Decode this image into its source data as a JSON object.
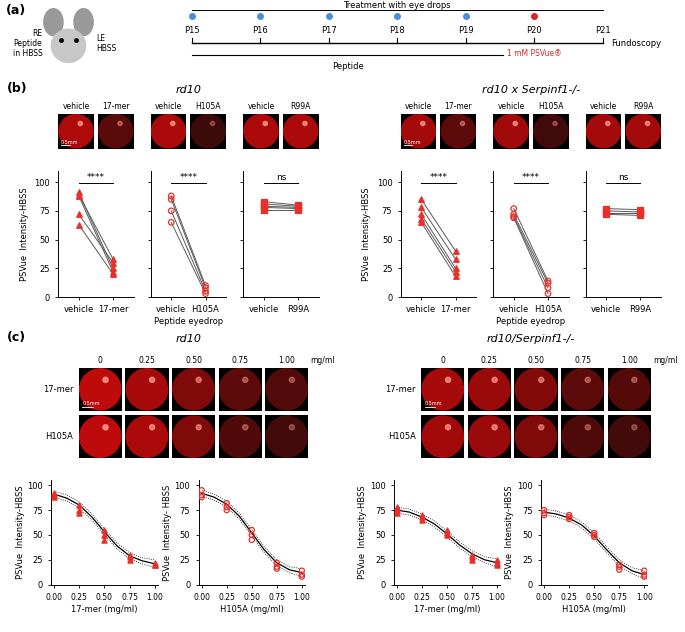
{
  "panel_a": {
    "label": "(a)",
    "right_eye": [
      "RE",
      "Peptide",
      "in HBSS"
    ],
    "left_eye": [
      "LE",
      "HBSS"
    ],
    "header": "Treatment with eye drops",
    "days": [
      "P15",
      "P16",
      "P17",
      "P18",
      "P19",
      "P20",
      "P21"
    ],
    "drop_days": [
      "P15",
      "P16",
      "P17",
      "P18",
      "P19"
    ],
    "psvue_day": "P20",
    "psvue_label": "1 mM PSVue®",
    "fundoscopy_day": "P21",
    "fundoscopy_label": "Fundoscopy",
    "peptide_label": "Peptide"
  },
  "panel_b": {
    "label": "(b)",
    "titles": [
      "rd10",
      "rd10 x Serpinf1-/-"
    ],
    "scale_bar": "0.5mm"
  },
  "panel_c": {
    "label": "(c)",
    "titles": [
      "rd10",
      "rd10/Serpinf1-/-"
    ],
    "doses": [
      "0",
      "0.25",
      "0.50",
      "0.75",
      "1.00"
    ],
    "dose_unit": "mg/ml",
    "rows": [
      "17-mer",
      "H105A"
    ],
    "scale_bar": "0.5mm"
  },
  "chart_data": [
    {
      "type": "line",
      "panel": "b",
      "group": 0,
      "categories": [
        "vehicle",
        "17-mer"
      ],
      "color": "#e8302a",
      "marker": "triangle",
      "series": [
        {
          "values": [
            91,
            25
          ]
        },
        {
          "values": [
            89,
            33
          ]
        },
        {
          "values": [
            88,
            22
          ]
        },
        {
          "values": [
            72,
            30
          ]
        },
        {
          "values": [
            63,
            20
          ]
        }
      ],
      "ylim": [
        0,
        110
      ],
      "yticks": [
        0,
        25,
        50,
        75,
        100
      ],
      "annotation": "****",
      "y_label": "PSVue  Intensity-HBSS"
    },
    {
      "type": "line",
      "panel": "b",
      "group": 0,
      "categories": [
        "vehicle",
        "H105A"
      ],
      "color": "#e8302a",
      "marker": "circle_open",
      "series": [
        {
          "values": [
            88,
            10
          ]
        },
        {
          "values": [
            85,
            8
          ]
        },
        {
          "values": [
            75,
            5
          ]
        },
        {
          "values": [
            65,
            3
          ]
        }
      ],
      "ylim": [
        0,
        110
      ],
      "yticks": [
        0,
        25,
        50,
        75,
        100
      ],
      "annotation": "****",
      "tick_labels": "x",
      "x_label": "Peptide eyedrop"
    },
    {
      "type": "line",
      "panel": "b",
      "group": 0,
      "categories": [
        "vehicle",
        "R99A"
      ],
      "color": "#e8302a",
      "marker": "square",
      "series": [
        {
          "values": [
            83,
            80
          ]
        },
        {
          "values": [
            81,
            79
          ]
        },
        {
          "values": [
            79,
            78
          ]
        },
        {
          "values": [
            78,
            77
          ]
        },
        {
          "values": [
            76,
            76
          ]
        }
      ],
      "ylim": [
        0,
        110
      ],
      "yticks": [
        0,
        25,
        50,
        75,
        100
      ],
      "annotation": "ns",
      "tick_labels": "x"
    },
    {
      "type": "line",
      "panel": "b",
      "group": 1,
      "categories": [
        "vehicle",
        "17-mer"
      ],
      "color": "#e8302a",
      "marker": "triangle",
      "series": [
        {
          "values": [
            85,
            40
          ]
        },
        {
          "values": [
            78,
            33
          ]
        },
        {
          "values": [
            72,
            25
          ]
        },
        {
          "values": [
            68,
            22
          ]
        },
        {
          "values": [
            65,
            18
          ]
        }
      ],
      "ylim": [
        0,
        110
      ],
      "yticks": [
        0,
        25,
        50,
        75,
        100
      ],
      "annotation": "****",
      "y_label": "PSVue  Intensity-HBSS"
    },
    {
      "type": "line",
      "panel": "b",
      "group": 1,
      "categories": [
        "vehicle",
        "H105A"
      ],
      "color": "#e8302a",
      "marker": "circle_open",
      "series": [
        {
          "values": [
            77,
            14
          ]
        },
        {
          "values": [
            72,
            12
          ]
        },
        {
          "values": [
            70,
            8
          ]
        },
        {
          "values": [
            69,
            3
          ]
        }
      ],
      "ylim": [
        0,
        110
      ],
      "yticks": [
        0,
        25,
        50,
        75,
        100
      ],
      "annotation": "****",
      "tick_labels": "x",
      "x_label": "Peptide eyedrop"
    },
    {
      "type": "line",
      "panel": "b",
      "group": 1,
      "categories": [
        "vehicle",
        "R99A"
      ],
      "color": "#e8302a",
      "marker": "square",
      "series": [
        {
          "values": [
            77,
            76
          ]
        },
        {
          "values": [
            75,
            74
          ]
        },
        {
          "values": [
            73,
            73
          ]
        },
        {
          "values": [
            72,
            71
          ]
        }
      ],
      "ylim": [
        0,
        110
      ],
      "yticks": [
        0,
        25,
        50,
        75,
        100
      ],
      "annotation": "ns",
      "tick_labels": "x"
    },
    {
      "type": "scatter",
      "panel": "c",
      "group": 0,
      "color": "#e8302a",
      "marker": "triangle",
      "x": [
        0,
        0,
        0,
        0.25,
        0.25,
        0.25,
        0.5,
        0.5,
        0.5,
        0.75,
        0.75,
        0.75,
        1,
        1,
        1
      ],
      "values": [
        92,
        90,
        88,
        80,
        75,
        72,
        55,
        50,
        45,
        30,
        28,
        25,
        22,
        20,
        20
      ],
      "fit": {
        "x": [
          0,
          0.125,
          0.25,
          0.375,
          0.5,
          0.625,
          0.75,
          0.875,
          1
        ],
        "values": [
          91,
          87,
          80,
          68,
          53,
          39,
          29,
          24,
          21
        ],
        "lower": [
          88,
          84,
          77,
          65,
          50,
          36,
          26,
          21,
          17
        ],
        "upper": [
          94,
          90,
          83,
          71,
          56,
          42,
          32,
          27,
          25
        ]
      },
      "xlim": [
        -0.03,
        1.03
      ],
      "xticks": [
        {
          "value": 0,
          "label": "0.00"
        },
        {
          "value": 0.25,
          "label": "0.25"
        },
        {
          "value": 0.5,
          "label": "0.50"
        },
        {
          "value": 0.75,
          "label": "0.75"
        },
        {
          "value": 1,
          "label": "1.00"
        }
      ],
      "ylim": [
        0,
        105
      ],
      "yticks": [
        0,
        25,
        50,
        75,
        100
      ],
      "x_label": "17-mer (mg/ml)",
      "y_label": "PSVue  Intensity-HBSS"
    },
    {
      "type": "scatter",
      "panel": "c",
      "group": 0,
      "color": "#e8302a",
      "marker": "circle_open",
      "x": [
        0,
        0,
        0,
        0.25,
        0.25,
        0.25,
        0.5,
        0.5,
        0.5,
        0.75,
        0.75,
        0.75,
        1,
        1,
        1
      ],
      "values": [
        95,
        90,
        88,
        82,
        78,
        75,
        55,
        50,
        45,
        22,
        18,
        16,
        14,
        10,
        8
      ],
      "fit": {
        "x": [
          0,
          0.125,
          0.25,
          0.375,
          0.5,
          0.625,
          0.75,
          0.875,
          1
        ],
        "values": [
          92,
          88,
          81,
          69,
          52,
          35,
          22,
          15,
          12
        ],
        "lower": [
          89,
          85,
          78,
          66,
          49,
          32,
          19,
          12,
          8
        ],
        "upper": [
          95,
          91,
          84,
          72,
          55,
          38,
          25,
          18,
          16
        ]
      },
      "xlim": [
        -0.03,
        1.03
      ],
      "xticks": [
        {
          "value": 0,
          "label": "0.00"
        },
        {
          "value": 0.25,
          "label": "0.25"
        },
        {
          "value": 0.5,
          "label": "0.50"
        },
        {
          "value": 0.75,
          "label": "0.75"
        },
        {
          "value": 1,
          "label": "1.00"
        }
      ],
      "ylim": [
        0,
        105
      ],
      "yticks": [
        0,
        25,
        50,
        75,
        100
      ],
      "x_label": "H105A (mg/ml)",
      "y_label": "PSVue  Intensity- HBSS"
    },
    {
      "type": "scatter",
      "panel": "c",
      "group": 1,
      "color": "#e8302a",
      "marker": "triangle",
      "x": [
        0,
        0,
        0,
        0.25,
        0.25,
        0.25,
        0.5,
        0.5,
        0.5,
        0.75,
        0.75,
        0.75,
        1,
        1,
        1
      ],
      "values": [
        78,
        75,
        72,
        70,
        68,
        65,
        55,
        52,
        50,
        30,
        28,
        25,
        25,
        22,
        20
      ],
      "fit": {
        "x": [
          0,
          0.125,
          0.25,
          0.375,
          0.5,
          0.625,
          0.75,
          0.875,
          1
        ],
        "values": [
          75,
          73,
          68,
          61,
          51,
          40,
          31,
          25,
          22
        ],
        "lower": [
          72,
          70,
          65,
          58,
          48,
          37,
          28,
          22,
          18
        ],
        "upper": [
          78,
          76,
          71,
          64,
          54,
          43,
          34,
          28,
          26
        ]
      },
      "xlim": [
        -0.03,
        1.03
      ],
      "xticks": [
        {
          "value": 0,
          "label": "0.00"
        },
        {
          "value": 0.25,
          "label": "0.25"
        },
        {
          "value": 0.5,
          "label": "0.50"
        },
        {
          "value": 0.75,
          "label": "0.75"
        },
        {
          "value": 1,
          "label": "1.00"
        }
      ],
      "ylim": [
        0,
        105
      ],
      "yticks": [
        0,
        25,
        50,
        75,
        100
      ],
      "x_label": "17-mer (mg/ml)",
      "y_label": "PSVue  Intensity-HBSS"
    },
    {
      "type": "scatter",
      "panel": "c",
      "group": 1,
      "color": "#e8302a",
      "marker": "circle_open",
      "x": [
        0,
        0,
        0,
        0.25,
        0.25,
        0.25,
        0.5,
        0.5,
        0.5,
        0.75,
        0.75,
        0.75,
        1,
        1,
        1
      ],
      "values": [
        75,
        72,
        70,
        70,
        68,
        66,
        52,
        50,
        48,
        20,
        18,
        15,
        14,
        10,
        8
      ],
      "fit": {
        "x": [
          0,
          0.125,
          0.25,
          0.375,
          0.5,
          0.625,
          0.75,
          0.875,
          1
        ],
        "values": [
          73,
          71,
          67,
          60,
          49,
          35,
          22,
          14,
          10
        ],
        "lower": [
          70,
          68,
          64,
          57,
          46,
          32,
          19,
          11,
          6
        ],
        "upper": [
          76,
          74,
          70,
          63,
          52,
          38,
          25,
          17,
          14
        ]
      },
      "xlim": [
        -0.03,
        1.03
      ],
      "xticks": [
        {
          "value": 0,
          "label": "0.00"
        },
        {
          "value": 0.25,
          "label": "0.25"
        },
        {
          "value": 0.5,
          "label": "0.50"
        },
        {
          "value": 0.75,
          "label": "0.75"
        },
        {
          "value": 1,
          "label": "1.00"
        }
      ],
      "ylim": [
        0,
        105
      ],
      "yticks": [
        0,
        25,
        50,
        75,
        100
      ],
      "x_label": "H105A (mg/ml)",
      "y_label": "PSVue  Intensity-HBSS"
    }
  ]
}
